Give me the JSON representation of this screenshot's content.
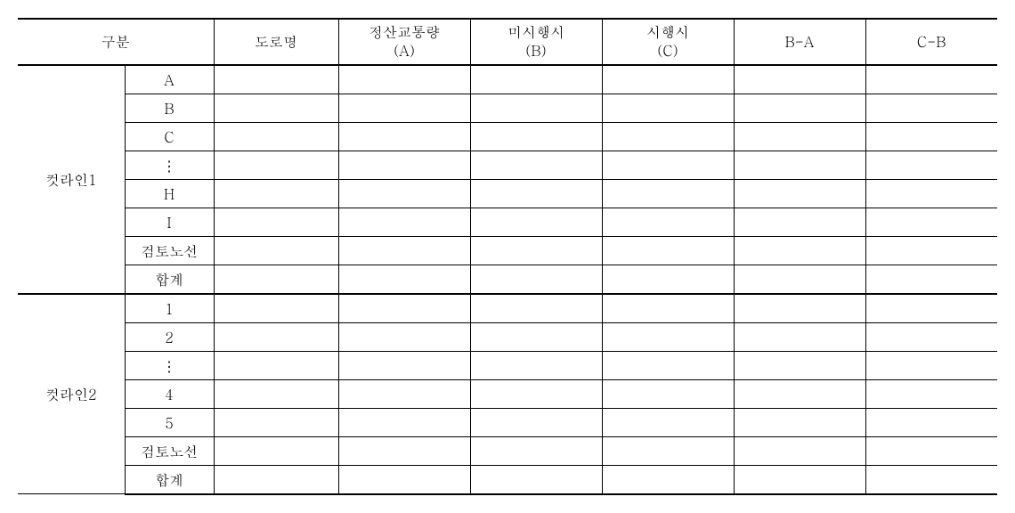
{
  "table": {
    "headers": {
      "gubun": "구분",
      "doro": "도로명",
      "jungsan": "정산교통량\n(A)",
      "misi": "미시행시\n(B)",
      "sihaeng": "시행시\n(C)",
      "ba": "B-A",
      "cb": "C-B"
    },
    "sections": [
      {
        "label": "컷라인1",
        "rows": [
          "A",
          "B",
          "C",
          "⋮",
          "H",
          "I",
          "검토노선",
          "합계"
        ]
      },
      {
        "label": "컷라인2",
        "rows": [
          "1",
          "2",
          "⋮",
          "4",
          "5",
          "검토노선",
          "합계"
        ]
      }
    ]
  },
  "style": {
    "font_family": "Batang",
    "header_fontsize": 16,
    "cell_fontsize": 16,
    "border_color": "#000000",
    "background_color": "#ffffff",
    "outer_border_width": 2,
    "inner_border_width": 1
  }
}
